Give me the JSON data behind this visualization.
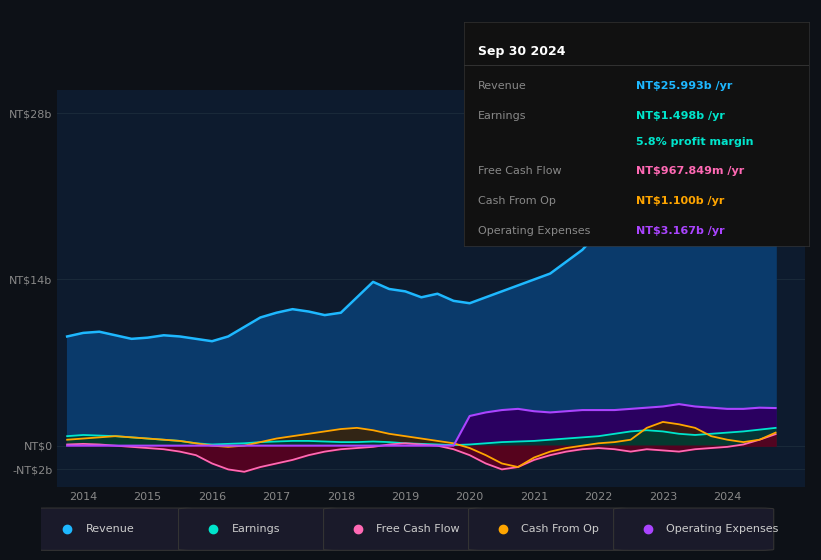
{
  "bg_color": "#0d1117",
  "plot_bg_color": "#0d1b2e",
  "title": "Sep 30 2024",
  "tooltip_bg": "#111111",
  "tooltip_border": "#333333",
  "tooltip_rows": [
    {
      "label": "Revenue",
      "value": "NT$25.993b /yr",
      "color": "#1eb8ff",
      "sub": null,
      "sub_color": null
    },
    {
      "label": "Earnings",
      "value": "NT$1.498b /yr",
      "color": "#00e5cc",
      "sub": "5.8% profit margin",
      "sub_color": "#00e5cc"
    },
    {
      "label": "Free Cash Flow",
      "value": "NT$967.849m /yr",
      "color": "#ff69b4",
      "sub": null,
      "sub_color": null
    },
    {
      "label": "Cash From Op",
      "value": "NT$1.100b /yr",
      "color": "#ffa500",
      "sub": null,
      "sub_color": null
    },
    {
      "label": "Operating Expenses",
      "value": "NT$3.167b /yr",
      "color": "#aa44ff",
      "sub": null,
      "sub_color": null
    }
  ],
  "ytick_vals": [
    28,
    14,
    0,
    -2
  ],
  "ytick_labels": [
    "NT$28b",
    "NT$14b",
    "NT$0",
    "-NT$2b"
  ],
  "ylim": [
    -3.5,
    30
  ],
  "xlim_start": 2013.6,
  "xlim_end": 2025.2,
  "xtick_years": [
    2014,
    2015,
    2016,
    2017,
    2018,
    2019,
    2020,
    2021,
    2022,
    2023,
    2024
  ],
  "revenue_color": "#1eb8ff",
  "revenue_fill": "#0a3a6b",
  "earnings_color": "#00e5cc",
  "earnings_fill": "#003d33",
  "fcf_color": "#ff69b4",
  "fcf_fill": "#5a0020",
  "cashfromop_color": "#ffa500",
  "cashfromop_fill": "#3d2000",
  "opex_color": "#aa44ff",
  "opex_fill": "#2a0060",
  "x_vals": [
    2013.75,
    2014.0,
    2014.25,
    2014.5,
    2014.75,
    2015.0,
    2015.25,
    2015.5,
    2015.75,
    2016.0,
    2016.25,
    2016.5,
    2016.75,
    2017.0,
    2017.25,
    2017.5,
    2017.75,
    2018.0,
    2018.25,
    2018.5,
    2018.75,
    2019.0,
    2019.25,
    2019.5,
    2019.75,
    2020.0,
    2020.25,
    2020.5,
    2020.75,
    2021.0,
    2021.25,
    2021.5,
    2021.75,
    2022.0,
    2022.25,
    2022.5,
    2022.75,
    2023.0,
    2023.25,
    2023.5,
    2023.75,
    2024.0,
    2024.25,
    2024.5,
    2024.75
  ],
  "revenue": [
    9.2,
    9.5,
    9.6,
    9.3,
    9.0,
    9.1,
    9.3,
    9.2,
    9.0,
    8.8,
    9.2,
    10.0,
    10.8,
    11.2,
    11.5,
    11.3,
    11.0,
    11.2,
    12.5,
    13.8,
    13.2,
    13.0,
    12.5,
    12.8,
    12.2,
    12.0,
    12.5,
    13.0,
    13.5,
    14.0,
    14.5,
    15.5,
    16.5,
    18.0,
    22.0,
    26.0,
    28.0,
    26.0,
    23.0,
    21.5,
    21.0,
    21.5,
    22.5,
    24.0,
    25.993
  ],
  "earnings": [
    0.8,
    0.9,
    0.85,
    0.8,
    0.7,
    0.6,
    0.5,
    0.4,
    0.2,
    0.1,
    0.15,
    0.2,
    0.3,
    0.35,
    0.4,
    0.4,
    0.35,
    0.3,
    0.3,
    0.35,
    0.3,
    0.2,
    0.15,
    0.1,
    0.05,
    0.1,
    0.2,
    0.3,
    0.35,
    0.4,
    0.5,
    0.6,
    0.7,
    0.8,
    1.0,
    1.2,
    1.3,
    1.2,
    1.0,
    0.9,
    1.0,
    1.1,
    1.2,
    1.35,
    1.498
  ],
  "fcf": [
    0.1,
    0.15,
    0.1,
    0.0,
    -0.1,
    -0.2,
    -0.3,
    -0.5,
    -0.8,
    -1.5,
    -2.0,
    -2.2,
    -1.8,
    -1.5,
    -1.2,
    -0.8,
    -0.5,
    -0.3,
    -0.2,
    -0.1,
    0.1,
    0.2,
    0.1,
    0.0,
    -0.3,
    -0.8,
    -1.5,
    -2.0,
    -1.8,
    -1.2,
    -0.8,
    -0.5,
    -0.3,
    -0.2,
    -0.3,
    -0.5,
    -0.3,
    -0.4,
    -0.5,
    -0.3,
    -0.2,
    -0.1,
    0.1,
    0.5,
    0.968
  ],
  "cashfromop": [
    0.5,
    0.6,
    0.7,
    0.8,
    0.7,
    0.6,
    0.5,
    0.4,
    0.2,
    0.0,
    -0.1,
    0.0,
    0.3,
    0.6,
    0.8,
    1.0,
    1.2,
    1.4,
    1.5,
    1.3,
    1.0,
    0.8,
    0.6,
    0.4,
    0.2,
    -0.2,
    -0.8,
    -1.5,
    -1.8,
    -1.0,
    -0.5,
    -0.2,
    0.0,
    0.2,
    0.3,
    0.5,
    1.5,
    2.0,
    1.8,
    1.5,
    0.8,
    0.5,
    0.3,
    0.5,
    1.1
  ],
  "opex": [
    0.0,
    0.0,
    0.0,
    0.0,
    0.0,
    0.0,
    0.0,
    0.0,
    0.0,
    0.0,
    0.0,
    0.0,
    0.0,
    0.0,
    0.0,
    0.0,
    0.0,
    0.0,
    0.0,
    0.0,
    0.0,
    0.0,
    0.0,
    0.0,
    0.0,
    2.5,
    2.8,
    3.0,
    3.1,
    2.9,
    2.8,
    2.9,
    3.0,
    3.0,
    3.0,
    3.1,
    3.2,
    3.3,
    3.5,
    3.3,
    3.2,
    3.1,
    3.1,
    3.2,
    3.167
  ],
  "legend": [
    {
      "label": "Revenue",
      "color": "#1eb8ff"
    },
    {
      "label": "Earnings",
      "color": "#00e5cc"
    },
    {
      "label": "Free Cash Flow",
      "color": "#ff69b4"
    },
    {
      "label": "Cash From Op",
      "color": "#ffa500"
    },
    {
      "label": "Operating Expenses",
      "color": "#aa44ff"
    }
  ]
}
